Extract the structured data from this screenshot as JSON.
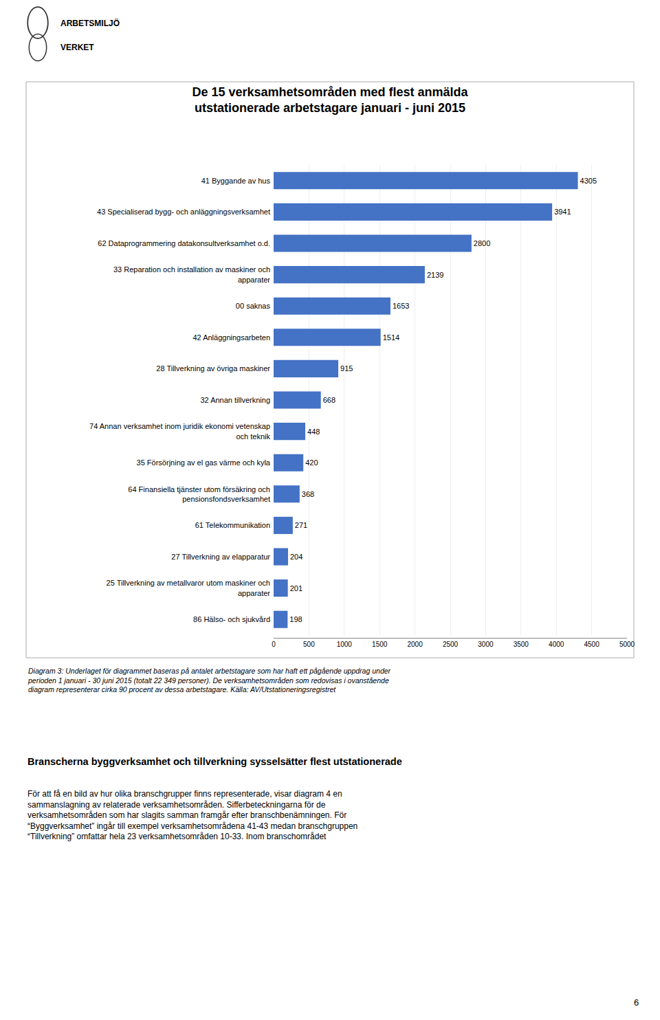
{
  "chart_data": {
    "type": "bar",
    "orientation": "horizontal",
    "title": "De 15 verksamhetsområden med flest anmälda",
    "subtitle": "utstationerade arbetstagare januari - juni 2015",
    "categories": [
      "41 Byggande av hus",
      "43 Specialiserad bygg- och anläggningsverksamhet",
      "62 Dataprogrammering datakonsultverksamhet o.d.",
      "33 Reparation och installation av maskiner och\napparater",
      "00 saknas",
      "42 Anläggningsarbeten",
      "28 Tillverkning av övriga maskiner",
      "32 Annan tillverkning",
      "74 Annan verksamhet inom juridik ekonomi vetenskap\noch teknik",
      "35 Försörjning av el gas värme och kyla",
      "64 Finansiella tjänster utom försäkring och\npensionsfondsverksamhet",
      "61 Telekommunikation",
      "27 Tillverkning av elapparatur",
      "25 Tillverkning av metallvaror utom maskiner och\napparater",
      "86 Hälso- och sjukvård"
    ],
    "values": [
      4305,
      3941,
      2800,
      2139,
      1653,
      1514,
      915,
      668,
      448,
      420,
      368,
      271,
      204,
      201,
      198
    ],
    "color": "#4472C4",
    "xlim": [
      0,
      5000
    ],
    "xticks": [
      0,
      500,
      1000,
      1500,
      2000,
      2500,
      3000,
      3500,
      4000,
      4500,
      5000
    ],
    "grid": true,
    "data_labels": true,
    "annotations": [
      "ARBETSMILJÖ",
      "VERKET",
      "Diagram 3: Underlaget för diagrammet baseras på antalet arbetstagare som har haft ett pågående uppdrag under\nperioden 1 januari - 30 juni 2015 (totalt 22 349 personer). De verksamhetsområden som redovisas i ovanstående\ndiagram representerar cirka 90 procent av dessa arbetstagare. Källa: AV/Utstationeringsregistret",
      "Branscherna byggverksamhet och tillverkning sysselsätter flest utstationerade",
      "För att få en bild av hur olika branschgrupper finns representerade, visar diagram 4 en\nsammanslagning av relaterade verksamhetsområden. Sifferbeteckningarna för de\nverksamhetsområden som har slagits samman framgår efter branschbenämningen. För\n“Byggverksamhet” ingår till exempel verksamhetsområdena 41-43 medan branschgruppen\n“Tillverkning” omfattar hela 23 verksamhetsområden 10-33. Inom branschområdet",
      "6"
    ]
  }
}
